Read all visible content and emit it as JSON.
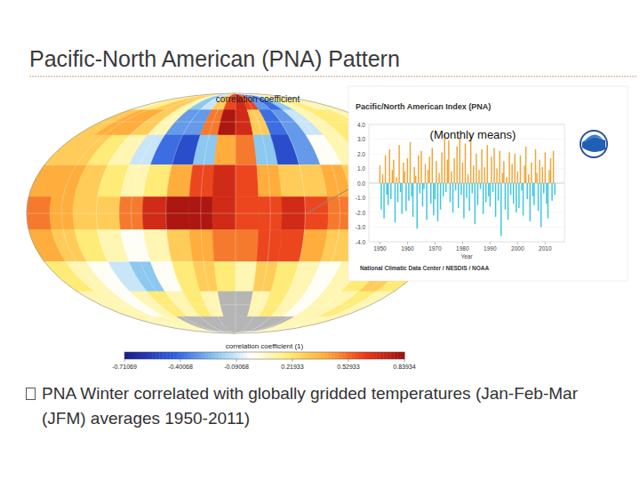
{
  "slide": {
    "title": "Pacific-North American (PNA) Pattern",
    "bullet": "PNA Winter correlated with globally gridded temperatures (Jan-Feb-Mar (JFM) averages 1950-2011)"
  },
  "chart_data": [
    {
      "type": "map",
      "title": "correlation coefficient",
      "colorbar_label": "correlation coefficient (1)",
      "cells": [
        [
          0.1,
          0.2,
          0.3,
          0.3,
          0.1,
          -0.2,
          -0.1,
          0.3,
          0.6,
          0.7,
          0.6,
          -0.3,
          -0.4,
          -0.2,
          0.1,
          0.2,
          0.1,
          0.1
        ],
        [
          0.3,
          0.4,
          0.4,
          0.3,
          0.1,
          -0.3,
          -0.3,
          0.5,
          0.8,
          0.7,
          0.3,
          -0.4,
          -0.3,
          -0.1,
          0.1,
          0.2,
          0.2,
          0.1
        ],
        [
          0.3,
          0.3,
          0.2,
          0.1,
          -0.1,
          -0.4,
          -0.5,
          -0.2,
          0.4,
          0.5,
          -0.2,
          -0.5,
          -0.3,
          0.0,
          0.1,
          0.2,
          0.2,
          0.3
        ],
        [
          0.4,
          0.4,
          0.3,
          0.2,
          0.1,
          0.2,
          0.4,
          0.6,
          0.7,
          0.6,
          0.4,
          0.3,
          0.3,
          0.4,
          0.3,
          0.3,
          0.4,
          0.4
        ],
        [
          0.5,
          0.4,
          0.3,
          0.3,
          0.5,
          0.7,
          0.8,
          0.8,
          0.7,
          0.6,
          0.6,
          0.7,
          0.6,
          0.5,
          0.4,
          0.4,
          0.5,
          0.5
        ],
        [
          0.4,
          0.3,
          0.2,
          0.1,
          0.0,
          0.1,
          0.3,
          0.4,
          0.5,
          0.5,
          0.6,
          0.6,
          0.4,
          0.3,
          0.3,
          0.4,
          0.4,
          0.3
        ],
        [
          0.2,
          0.1,
          0.0,
          -0.1,
          -0.2,
          0.0,
          0.2,
          0.3,
          0.2,
          0.1,
          0.3,
          0.2,
          0.1,
          0.0,
          0.1,
          0.2,
          0.3,
          0.2
        ],
        [
          0.1,
          0.1,
          0.0,
          0.1,
          0.2,
          0.1,
          0.2,
          0.1,
          null,
          null,
          0.1,
          0.2,
          0.1,
          0.0,
          0.1,
          0.1,
          0.2,
          0.1
        ],
        [
          0.1,
          0.1,
          0.1,
          0.1,
          null,
          null,
          null,
          null,
          null,
          null,
          null,
          null,
          null,
          null,
          0.1,
          0.1,
          0.1,
          0.1
        ]
      ],
      "zlim": [
        -0.71069,
        0.83934
      ],
      "zticks": [
        -0.71069,
        -0.40068,
        -0.09068,
        0.21933,
        0.52933,
        0.83934
      ]
    },
    {
      "type": "bar",
      "title": "Pacific/North American Index (PNA)",
      "annotation": "(Monthly means)",
      "x_label": "Year",
      "source": "National Climatic Data Center / NESDIS / NOAA",
      "x": [
        1950,
        1950.5,
        1951,
        1951.5,
        1952,
        1952.5,
        1953,
        1953.5,
        1954,
        1954.5,
        1955,
        1955.5,
        1956,
        1956.5,
        1957,
        1957.5,
        1958,
        1958.5,
        1959,
        1959.5,
        1960,
        1960.5,
        1961,
        1961.5,
        1962,
        1962.5,
        1963,
        1963.5,
        1964,
        1964.5,
        1965,
        1965.5,
        1966,
        1966.5,
        1967,
        1967.5,
        1968,
        1968.5,
        1969,
        1969.5,
        1970,
        1970.5,
        1971,
        1971.5,
        1972,
        1972.5,
        1973,
        1973.5,
        1974,
        1974.5,
        1975,
        1975.5,
        1976,
        1976.5,
        1977,
        1977.5,
        1978,
        1978.5,
        1979,
        1979.5,
        1980,
        1980.5,
        1981,
        1981.5,
        1982,
        1982.5,
        1983,
        1983.5,
        1984,
        1984.5,
        1985,
        1985.5,
        1986,
        1986.5,
        1987,
        1987.5,
        1988,
        1988.5,
        1989,
        1989.5,
        1990,
        1990.5,
        1991,
        1991.5,
        1992,
        1992.5,
        1993,
        1993.5,
        1994,
        1994.5,
        1995,
        1995.5,
        1996,
        1996.5,
        1997,
        1997.5,
        1998,
        1998.5,
        1999,
        1999.5,
        2000,
        2000.5,
        2001,
        2001.5,
        2002,
        2002.5,
        2003,
        2003.5,
        2004,
        2004.5,
        2005,
        2005.5,
        2006,
        2006.5,
        2007,
        2007.5,
        2008,
        2008.5,
        2009,
        2009.5,
        2010,
        2010.5,
        2011,
        2011.5,
        2012,
        2012.5,
        2013,
        2013.5
      ],
      "values": [
        1.2,
        -1.8,
        0.6,
        -2.4,
        1.9,
        -0.8,
        -1.5,
        2.3,
        -1.1,
        0.9,
        1.6,
        -2.7,
        0.4,
        -1.3,
        2.6,
        -0.6,
        -2.1,
        1.4,
        0.8,
        -1.9,
        1.7,
        -1.2,
        2.8,
        -0.9,
        -2.3,
        1.1,
        0.5,
        -3.1,
        1.9,
        -0.7,
        2.2,
        -1.6,
        -0.4,
        1.3,
        -2.5,
        0.9,
        1.8,
        -1.4,
        2.4,
        -2.2,
        -1.1,
        1.5,
        -2.6,
        0.7,
        -1.8,
        2.1,
        -0.9,
        3.4,
        -0.6,
        1.6,
        2.9,
        -1.3,
        0.8,
        -2.0,
        1.7,
        -0.5,
        2.5,
        -1.7,
        3.1,
        -0.8,
        1.4,
        -2.4,
        2.7,
        -1.0,
        0.6,
        -1.9,
        3.3,
        -0.7,
        1.2,
        -2.8,
        2.0,
        -1.5,
        0.9,
        -0.4,
        2.3,
        -2.1,
        1.1,
        -1.3,
        2.6,
        -0.9,
        -1.6,
        1.8,
        -0.6,
        2.4,
        -2.3,
        1.0,
        -1.2,
        2.2,
        -3.6,
        0.7,
        1.5,
        -1.8,
        0.4,
        -2.5,
        2.1,
        -0.8,
        1.3,
        -1.4,
        2.0,
        -2.0,
        0.8,
        -1.7,
        1.9,
        -0.5,
        -2.2,
        1.2,
        2.5,
        -1.1,
        0.6,
        -2.6,
        1.4,
        -0.9,
        -1.5,
        2.3,
        0.7,
        -1.9,
        1.6,
        -3.0,
        1.1,
        -0.7,
        2.1,
        -1.4,
        -2.4,
        0.9,
        1.7,
        -1.2,
        2.2,
        -0.8
      ],
      "xlim": [
        1946,
        2017
      ],
      "xticks": [
        1950,
        1960,
        1970,
        1980,
        1990,
        2000,
        2010
      ],
      "ylim": [
        -4,
        4
      ],
      "yticks": [
        {
          "value": 4,
          "label": "4.0"
        },
        {
          "value": 3,
          "label": "3.0"
        },
        {
          "value": 2,
          "label": "2.0"
        },
        {
          "value": 1,
          "label": "1.0"
        },
        {
          "value": 0,
          "label": "0.0"
        },
        {
          "value": -1,
          "label": "-1.0"
        },
        {
          "value": -2,
          "label": "-2.0"
        },
        {
          "value": -3,
          "label": "-3.0"
        },
        {
          "value": -4,
          "label": "-4.0"
        }
      ]
    }
  ]
}
